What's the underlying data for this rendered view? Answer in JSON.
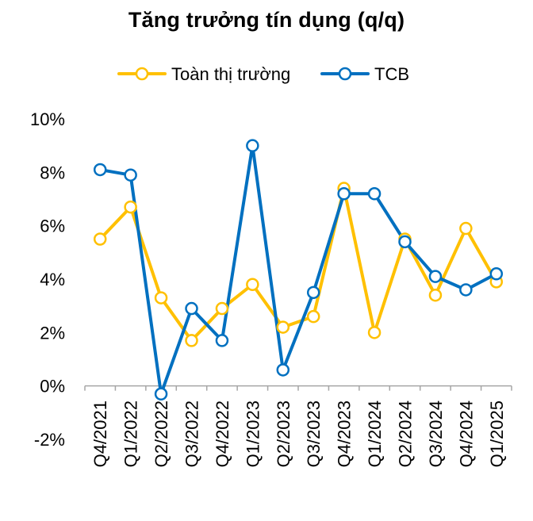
{
  "chart_data": {
    "type": "line",
    "title": "Tăng trưởng tín dụng (q/q)",
    "categories": [
      "Q4/2021",
      "Q1/2022",
      "Q2/2022",
      "Q3/2022",
      "Q4/2022",
      "Q1/2023",
      "Q2/2023",
      "Q3/2023",
      "Q4/2023",
      "Q1/2024",
      "Q2/2024",
      "Q3/2024",
      "Q4/2024",
      "Q1/2025"
    ],
    "series": [
      {
        "name": "Toàn thị trường",
        "color": "#FFC000",
        "values": [
          5.5,
          6.7,
          3.3,
          1.7,
          2.9,
          3.8,
          2.2,
          2.6,
          7.4,
          2.0,
          5.5,
          3.4,
          5.9,
          3.9
        ]
      },
      {
        "name": "TCB",
        "color": "#0070C0",
        "values": [
          8.1,
          7.9,
          -0.3,
          2.9,
          1.7,
          9.0,
          0.6,
          3.5,
          7.2,
          7.2,
          5.4,
          4.1,
          3.6,
          4.2
        ]
      }
    ],
    "ylim": [
      -2,
      10
    ],
    "yticks": [
      -2,
      0,
      2,
      4,
      6,
      8,
      10
    ],
    "ytick_labels": [
      "-2%",
      "0%",
      "2%",
      "4%",
      "6%",
      "8%",
      "10%"
    ],
    "grid": false,
    "legend_position": "top-center",
    "xlabel": "",
    "ylabel": ""
  }
}
